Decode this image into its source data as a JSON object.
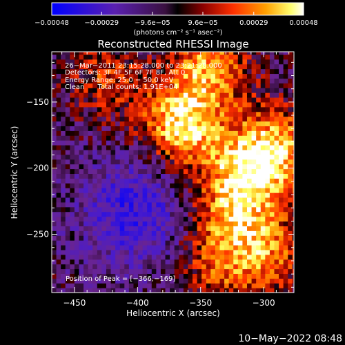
{
  "chart_data": {
    "type": "heatmap",
    "title": "Reconstructed RHESSI Image",
    "xlabel": "Heliocentric X (arcsec)",
    "ylabel": "Heliocentric Y (arcsec)",
    "xlim": [
      -468,
      -276
    ],
    "ylim": [
      -294,
      -112
    ],
    "x_ticks": [
      -450,
      -400,
      -350,
      -300
    ],
    "x_tick_labels": [
      "−450",
      "−400",
      "−350",
      "−300"
    ],
    "y_ticks": [
      -150,
      -200,
      -250
    ],
    "y_tick_labels": [
      "−150",
      "−200",
      "−250"
    ],
    "colorbar": {
      "range": [
        -0.00048,
        0.00048
      ],
      "ticks": [
        -0.00048,
        -0.00029,
        -9.6e-05,
        9.6e-05,
        0.00029,
        0.00048
      ],
      "tick_labels": [
        "−0.00048",
        "−0.00029",
        "−9.6e−05",
        "9.6e−05",
        "0.00029",
        "0.00048"
      ],
      "units": "(photons cm⁻² s⁻¹ asec⁻²)",
      "colors": [
        "#0000ff",
        "#4b1cc8",
        "#6a2490",
        "#000000",
        "#7a0000",
        "#ff3000",
        "#ff9a00",
        "#ffff60",
        "#ffffff"
      ]
    },
    "annotations": [
      "26−Mar−2011 23:15:28.000 to 23:21:28.000",
      "Detectors: 3F 4F 5F 6F 7F 8F, Att 0",
      "Energy Range: 25.0 − 50.0 keV",
      "Clean      Total counts: 1.91E+04"
    ],
    "peak_label": "Position of Peak = [−366,−169]",
    "peak": [
      -366,
      -169
    ],
    "sources": [
      {
        "x": -366,
        "y": -169,
        "amplitude": 1.0
      },
      {
        "x": -345,
        "y": -125,
        "amplitude": 0.75
      },
      {
        "x": -315,
        "y": -205,
        "amplitude": 0.85
      },
      {
        "x": -290,
        "y": -185,
        "amplitude": 0.7
      },
      {
        "x": -300,
        "y": -265,
        "amplitude": 0.6
      },
      {
        "x": -330,
        "y": -240,
        "amplitude": 0.55
      },
      {
        "x": -425,
        "y": -135,
        "amplitude": 0.45
      },
      {
        "x": -340,
        "y": -280,
        "amplitude": 0.4
      }
    ],
    "negative_region": {
      "x": -405,
      "y": -235,
      "amplitude": -0.55
    }
  },
  "footer_date": "10−May−2022 08:48"
}
